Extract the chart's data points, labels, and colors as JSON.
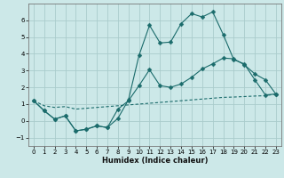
{
  "xlabel": "Humidex (Indice chaleur)",
  "background_color": "#cce8e8",
  "grid_color": "#aacccc",
  "line_color": "#1a6b6b",
  "xlim": [
    -0.5,
    23.5
  ],
  "ylim": [
    -1.5,
    7.0
  ],
  "yticks": [
    -1,
    0,
    1,
    2,
    3,
    4,
    5,
    6
  ],
  "xticks": [
    0,
    1,
    2,
    3,
    4,
    5,
    6,
    7,
    8,
    9,
    10,
    11,
    12,
    13,
    14,
    15,
    16,
    17,
    18,
    19,
    20,
    21,
    22,
    23
  ],
  "line1_x": [
    0,
    1,
    2,
    3,
    4,
    5,
    6,
    7,
    8,
    9,
    10,
    11,
    12,
    13,
    14,
    15,
    16,
    17,
    18,
    19,
    20,
    21,
    22,
    23
  ],
  "line1_y": [
    1.2,
    0.6,
    0.1,
    0.3,
    -0.6,
    -0.5,
    -0.3,
    -0.4,
    0.15,
    1.25,
    3.9,
    5.7,
    4.65,
    4.7,
    5.8,
    6.4,
    6.2,
    6.5,
    5.15,
    3.65,
    3.4,
    2.45,
    1.55,
    1.6
  ],
  "line2_x": [
    0,
    1,
    2,
    3,
    4,
    5,
    6,
    7,
    8,
    9,
    10,
    11,
    12,
    13,
    14,
    15,
    16,
    17,
    18,
    19,
    20,
    21,
    22,
    23
  ],
  "line2_y": [
    1.2,
    0.6,
    0.1,
    0.3,
    -0.6,
    -0.5,
    -0.3,
    -0.4,
    0.7,
    1.2,
    2.1,
    3.05,
    2.1,
    2.0,
    2.2,
    2.6,
    3.1,
    3.4,
    3.75,
    3.7,
    3.35,
    2.8,
    2.45,
    1.6
  ],
  "line3_x": [
    0,
    1,
    2,
    3,
    4,
    5,
    6,
    7,
    8,
    9,
    10,
    11,
    12,
    13,
    14,
    15,
    16,
    17,
    18,
    19,
    20,
    21,
    22,
    23
  ],
  "line3_y": [
    1.2,
    0.9,
    0.8,
    0.85,
    0.7,
    0.75,
    0.8,
    0.85,
    0.9,
    0.95,
    1.0,
    1.05,
    1.1,
    1.15,
    1.2,
    1.25,
    1.3,
    1.35,
    1.4,
    1.42,
    1.45,
    1.48,
    1.5,
    1.6
  ],
  "markersize": 2.5
}
